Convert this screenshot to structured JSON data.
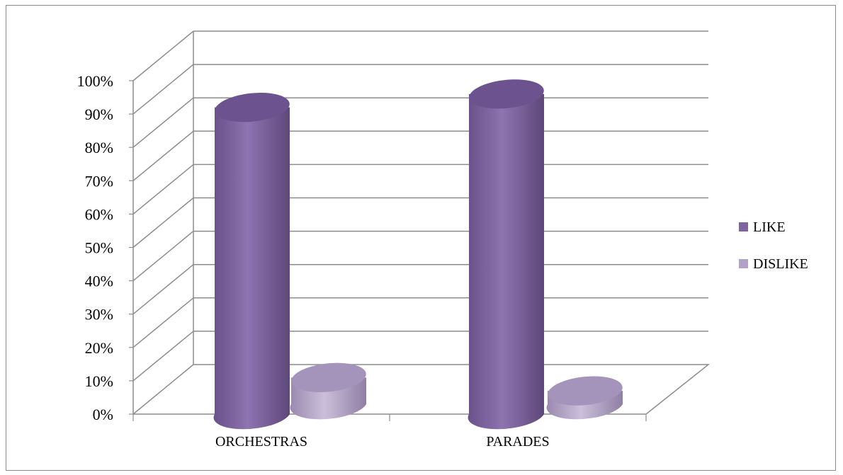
{
  "chart_data": {
    "type": "bar",
    "title": "",
    "xlabel": "",
    "ylabel": "",
    "categories": [
      "ORCHESTRAS",
      "PARADES"
    ],
    "series": [
      {
        "name": "LIKE",
        "values": [
          92,
          96
        ],
        "color": "#8064A2"
      },
      {
        "name": "DISLIKE",
        "values": [
          8,
          4
        ],
        "color": "#B3A2C7"
      }
    ],
    "ylim": [
      0,
      100
    ],
    "yticks": [
      "0%",
      "10%",
      "20%",
      "30%",
      "40%",
      "50%",
      "60%",
      "70%",
      "80%",
      "90%",
      "100%"
    ],
    "grid": true,
    "legend_position": "right",
    "style": "3d-cylinder"
  }
}
